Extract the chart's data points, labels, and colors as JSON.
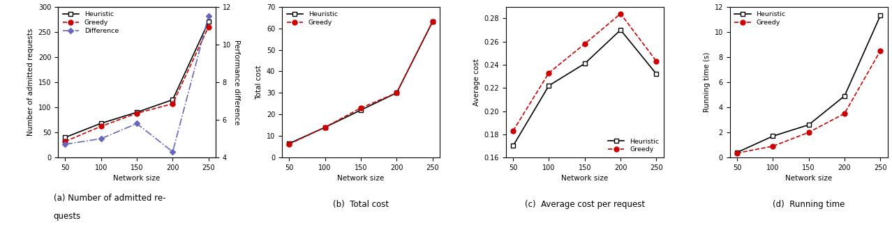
{
  "x": [
    50,
    100,
    150,
    200,
    250
  ],
  "plot_a": {
    "heuristic": [
      40,
      68,
      90,
      115,
      270
    ],
    "greedy": [
      32,
      62,
      88,
      107,
      260
    ],
    "difference": [
      4.7,
      5.0,
      5.8,
      4.3,
      11.5
    ],
    "ylabel_left": "Number of admitted requests",
    "ylabel_right": "Performance difference",
    "ylim_left": [
      0,
      300
    ],
    "ylim_right": [
      4,
      12
    ],
    "yticks_left": [
      0,
      50,
      100,
      150,
      200,
      250,
      300
    ],
    "yticks_right": [
      4,
      6,
      8,
      10,
      12
    ],
    "caption_line1": "(a) Number of admitted re-",
    "caption_line2": "quests"
  },
  "plot_b": {
    "heuristic": [
      6.5,
      14,
      22,
      30,
      63
    ],
    "greedy": [
      6.2,
      14,
      23,
      30,
      63
    ],
    "ylabel": "Total cost",
    "ylim": [
      0,
      70
    ],
    "yticks": [
      0,
      10,
      20,
      30,
      40,
      50,
      60,
      70
    ],
    "caption": "(b)  Total cost"
  },
  "plot_c": {
    "heuristic": [
      0.17,
      0.222,
      0.241,
      0.27,
      0.232
    ],
    "greedy": [
      0.183,
      0.233,
      0.258,
      0.284,
      0.243
    ],
    "ylabel": "Average cost",
    "ylim": [
      0.16,
      0.29
    ],
    "yticks": [
      0.16,
      0.18,
      0.2,
      0.22,
      0.24,
      0.26,
      0.28
    ],
    "caption": "(c)  Average cost per request"
  },
  "plot_d": {
    "heuristic": [
      0.4,
      1.7,
      2.6,
      4.9,
      11.3
    ],
    "greedy": [
      0.35,
      0.9,
      2.0,
      3.5,
      8.5
    ],
    "ylabel": "Running time (s)",
    "ylim": [
      0,
      12
    ],
    "yticks": [
      0,
      2,
      4,
      6,
      8,
      10,
      12
    ],
    "caption": "(d)  Running time"
  },
  "colors": {
    "heuristic_line": "#000000",
    "greedy_line": "#cc0000",
    "difference_line": "#6666bb"
  },
  "xlabel": "Network size",
  "xticks": [
    50,
    100,
    150,
    200,
    250
  ]
}
